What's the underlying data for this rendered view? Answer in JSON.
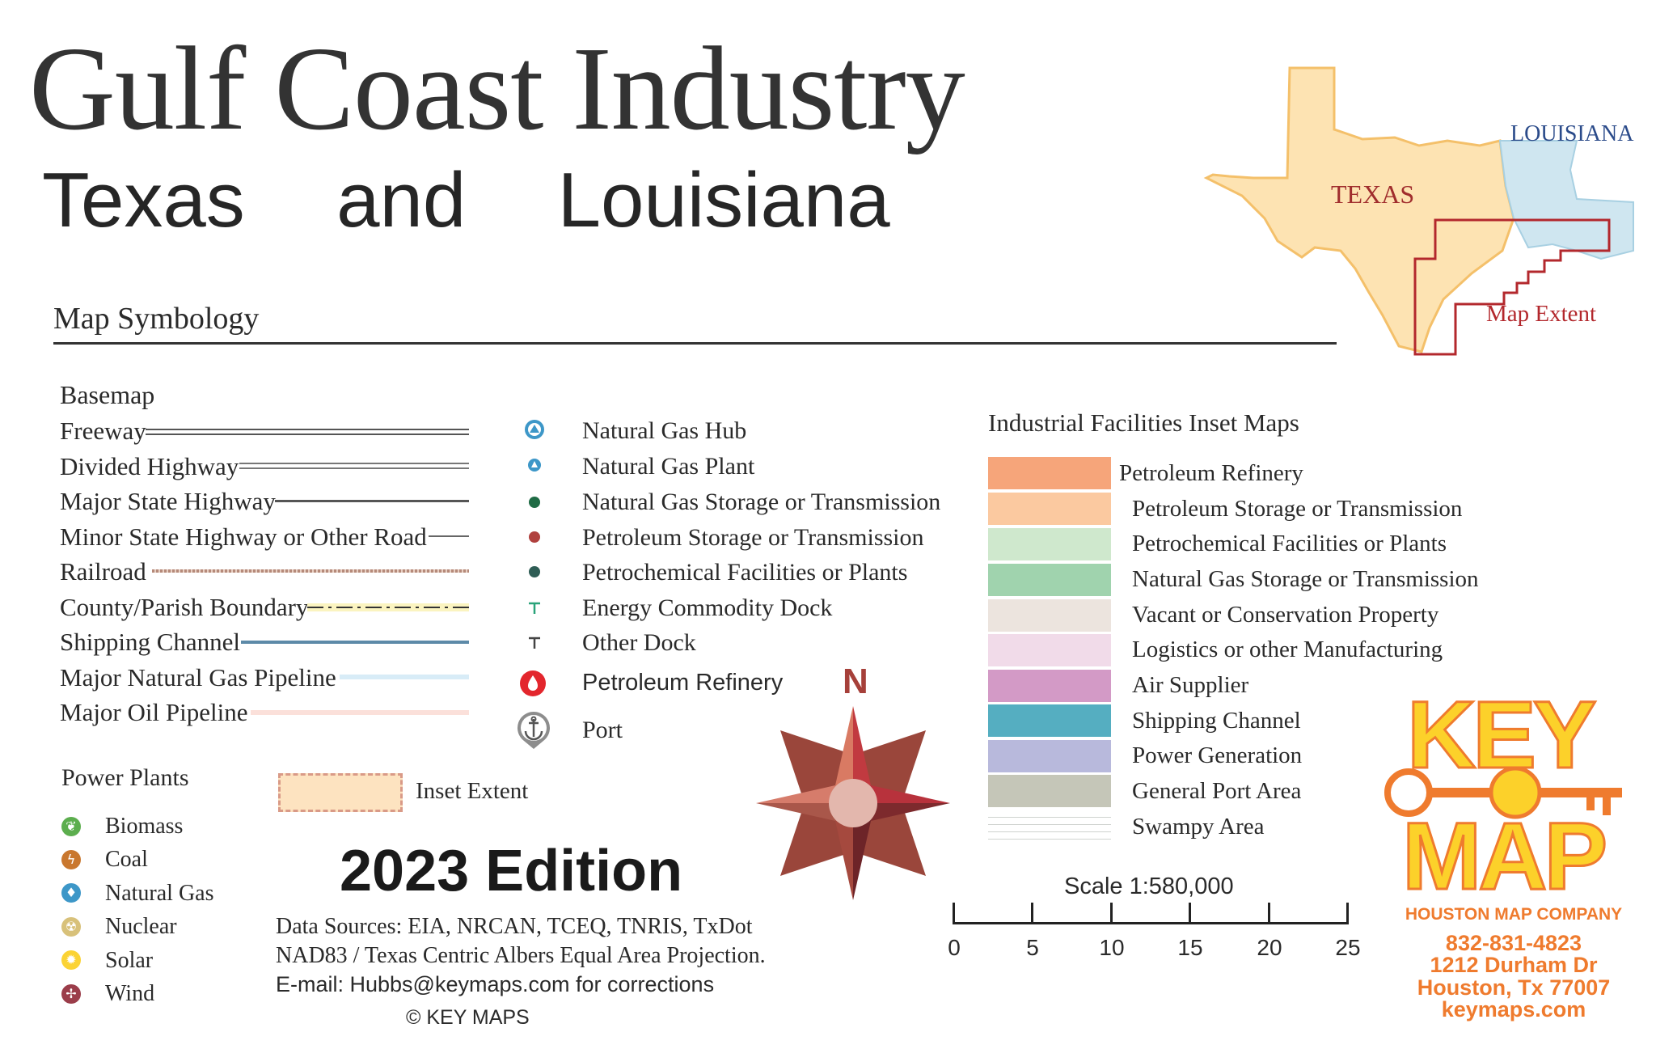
{
  "title": "Gulf Coast Industry",
  "subtitle": "Texas  and  Louisiana",
  "symbology_heading": "Map Symbology",
  "basemap": {
    "heading": "Basemap",
    "items": [
      "Freeway",
      "Divided Highway",
      "Major State Highway",
      "Minor State Highway or Other Road",
      "Railroad",
      "County/Parish Boundary",
      "Shipping Channel",
      "Major Natural Gas Pipeline",
      "Major Oil Pipeline"
    ]
  },
  "points": {
    "items": [
      "Natural Gas Hub",
      "Natural Gas Plant",
      "Natural Gas Storage or Transmission",
      "Petroleum Storage or Transmission",
      "Petrochemical Facilities or Plants",
      "Energy Commodity Dock",
      "Other Dock",
      "Petroleum Refinery",
      "Port"
    ]
  },
  "power_plants": {
    "heading": "Power Plants",
    "items": [
      "Biomass",
      "Coal",
      "Natural Gas",
      "Nuclear",
      "Solar",
      "Wind"
    ]
  },
  "inset_extent_label": "Inset Extent",
  "facilities": {
    "heading": "Industrial Facilities Inset Maps",
    "items": [
      {
        "label": "Petroleum Refinery",
        "color": "#f6a57a"
      },
      {
        "label": "Petroleum Storage or Transmission",
        "color": "#fbc9a0"
      },
      {
        "label": "Petrochemical Facilities or Plants",
        "color": "#cfe8cd"
      },
      {
        "label": "Natural Gas Storage or Transmission",
        "color": "#a0d3ae"
      },
      {
        "label": "Vacant or Conservation Property",
        "color": "#ece4de"
      },
      {
        "label": "Logistics or other Manufacturing",
        "color": "#f1dbe9"
      },
      {
        "label": "Air Supplier",
        "color": "#d39ac6"
      },
      {
        "label": "Shipping Channel",
        "color": "#55aec1"
      },
      {
        "label": "Power Generation",
        "color": "#b8b9dc"
      },
      {
        "label": "General Port Area",
        "color": "#c5c6b8"
      },
      {
        "label": "Swampy Area",
        "color": "#ffffff"
      }
    ]
  },
  "inset_map": {
    "texas": "TEXAS",
    "louisiana": "LOUISIANA",
    "extent": "Map Extent"
  },
  "compass": "N",
  "edition": "2023 Edition",
  "sources": [
    "Data Sources: EIA, NRCAN, TCEQ, TNRIS, TxDot",
    "NAD83 / Texas Centric Albers Equal Area Projection.",
    "E-mail: Hubbs@keymaps.com for corrections",
    "© KEY MAPS"
  ],
  "scale": {
    "label": "Scale 1:580,000",
    "ticks": [
      "0",
      "5",
      "10",
      "15",
      "20",
      "25"
    ]
  },
  "logo": {
    "top": "KEY",
    "bottom": "MAP",
    "company": "HOUSTON MAP COMPANY"
  },
  "contact": {
    "phone": "832-831-4823",
    "street": "1212 Durham Dr",
    "city": "Houston, Tx 77007",
    "web": "keymaps.com"
  },
  "colors": {
    "accent_orange": "#ef7b2e",
    "logo_yellow": "#fcd12a",
    "extent_red": "#b3282d",
    "texas_fill": "#fde3b2",
    "louisiana_fill": "#cfe6f0"
  }
}
